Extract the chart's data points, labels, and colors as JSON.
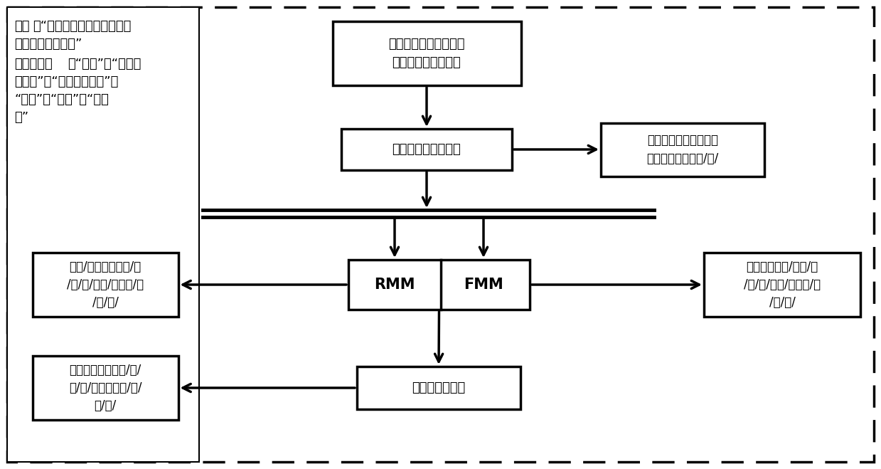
{
  "background_color": "#ffffff",
  "top_box_text": "地铁通信设备机房不应\n与电力变电所相邻。",
  "process_box_text": "非中文汉字符号处理",
  "right_top_box_text": "地铁通信设备机房不应\n与电力变电所相邻/。/",
  "rmm_box_text": "RMM",
  "fmm_box_text": "FMM",
  "left_mid_box_text": "地铁/通信设备机房/不\n/应/与/电力/变电所/相\n/邻/。/",
  "right_mid_box_text": "地铁通信设备/机房/不\n/应/与/电力/变电所/相\n/邻/。/",
  "bottom_process_text": "规则集匹配处理",
  "left_bot_box_text": "地铁通信设备机房/不/\n应/与/电力变电所/相/\n邻/。/",
  "anno_liju_bold": "例句",
  "anno_liju_rest": "：“地铁通信设备机房不应与",
  "anno_line2": "电力变电所相邻。”",
  "anno_cidian_bold": "词典中的词",
  "anno_cidian_rest": "：“地铁”，“通信设",
  "anno_line4": "备机房”，“地铁通信设备”，",
  "anno_line5": "“机房”，“电力”，“变电",
  "anno_line6": "所”"
}
